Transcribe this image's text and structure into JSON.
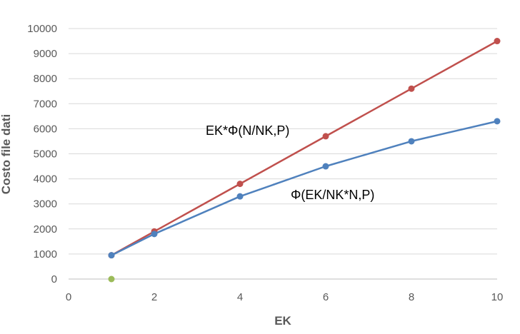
{
  "chart_data": {
    "type": "scatter",
    "xlabel": "EK",
    "ylabel": "Costo file dati",
    "xlim": [
      0,
      10
    ],
    "ylim": [
      0,
      10000
    ],
    "x_ticks": [
      "0",
      "2",
      "4",
      "6",
      "8",
      "10"
    ],
    "y_ticks": [
      "0",
      "1000",
      "2000",
      "3000",
      "4000",
      "5000",
      "6000",
      "7000",
      "8000",
      "9000",
      "10000"
    ],
    "grid": "horizontal",
    "series": [
      {
        "name": "EK*Φ(N/NK,P)",
        "color": "#c0504d",
        "points": [
          [
            1,
            950
          ],
          [
            2,
            1900
          ],
          [
            4,
            3800
          ],
          [
            6,
            5700
          ],
          [
            8,
            7600
          ],
          [
            10,
            9500
          ]
        ]
      },
      {
        "name": "Φ(EK/NK*N,P)",
        "color": "#4f81bd",
        "points": [
          [
            1,
            950
          ],
          [
            2,
            1800
          ],
          [
            4,
            3300
          ],
          [
            6,
            4500
          ],
          [
            8,
            5500
          ],
          [
            10,
            6300
          ]
        ]
      },
      {
        "color": "#9bbb59",
        "points": [
          [
            1,
            0
          ]
        ]
      }
    ],
    "annotations": [
      {
        "text": "EK*Φ(N/NK,P)",
        "series": 0
      },
      {
        "text": "Φ(EK/NK*N,P)",
        "series": 1
      }
    ]
  }
}
